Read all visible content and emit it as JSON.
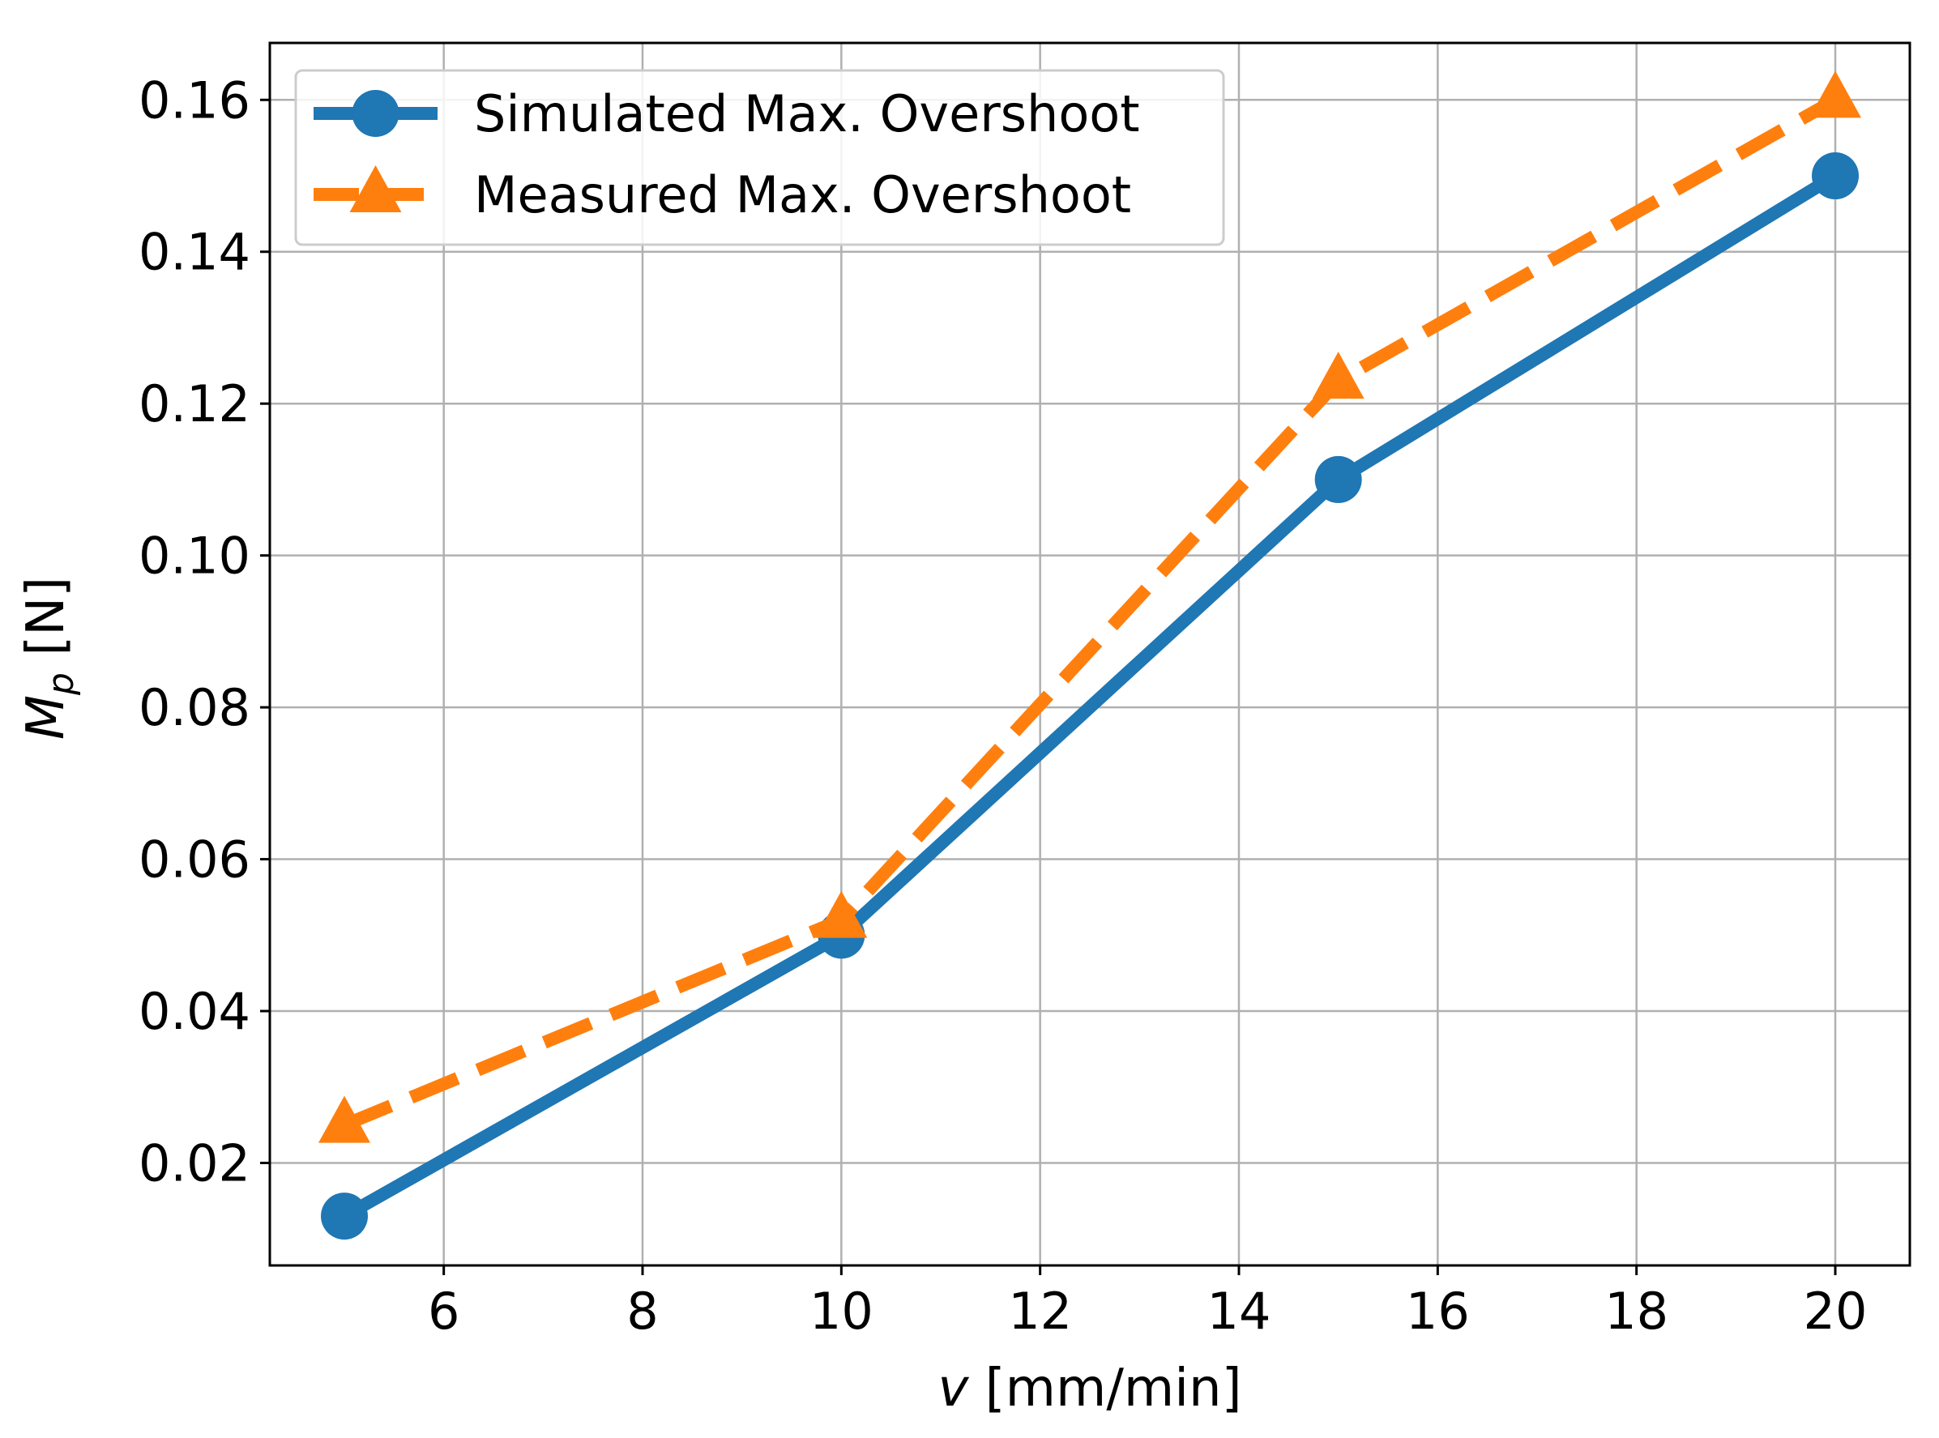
{
  "chart_data": {
    "type": "line",
    "title": "",
    "xlabel_italic": "v",
    "xlabel_rest": " [mm/min]",
    "ylabel_main": "M",
    "ylabel_sub": "p",
    "ylabel_rest": " [N]",
    "xlim": [
      4.25,
      20.75
    ],
    "ylim": [
      0.0065,
      0.1675
    ],
    "grid": true,
    "legend_position": "top-left",
    "x_ticks": [
      {
        "value": 6,
        "label": "6"
      },
      {
        "value": 8,
        "label": "8"
      },
      {
        "value": 10,
        "label": "10"
      },
      {
        "value": 12,
        "label": "12"
      },
      {
        "value": 14,
        "label": "14"
      },
      {
        "value": 16,
        "label": "16"
      },
      {
        "value": 18,
        "label": "18"
      },
      {
        "value": 20,
        "label": "20"
      }
    ],
    "y_ticks": [
      {
        "value": 0.02,
        "label": "0.02"
      },
      {
        "value": 0.04,
        "label": "0.04"
      },
      {
        "value": 0.06,
        "label": "0.06"
      },
      {
        "value": 0.08,
        "label": "0.08"
      },
      {
        "value": 0.1,
        "label": "0.10"
      },
      {
        "value": 0.12,
        "label": "0.12"
      },
      {
        "value": 0.14,
        "label": "0.14"
      },
      {
        "value": 0.16,
        "label": "0.16"
      }
    ],
    "series": [
      {
        "name": "Simulated Max. Overshoot",
        "color": "#1f77b4",
        "line_style": "solid",
        "marker": "circle",
        "x": [
          5,
          10,
          15,
          20
        ],
        "y": [
          0.013,
          0.05,
          0.11,
          0.15
        ]
      },
      {
        "name": "Measured Max. Overshoot",
        "color": "#ff7f0e",
        "line_style": "dashed",
        "marker": "triangle",
        "x": [
          5,
          10,
          15,
          20
        ],
        "y": [
          0.025,
          0.052,
          0.123,
          0.16
        ]
      }
    ]
  }
}
